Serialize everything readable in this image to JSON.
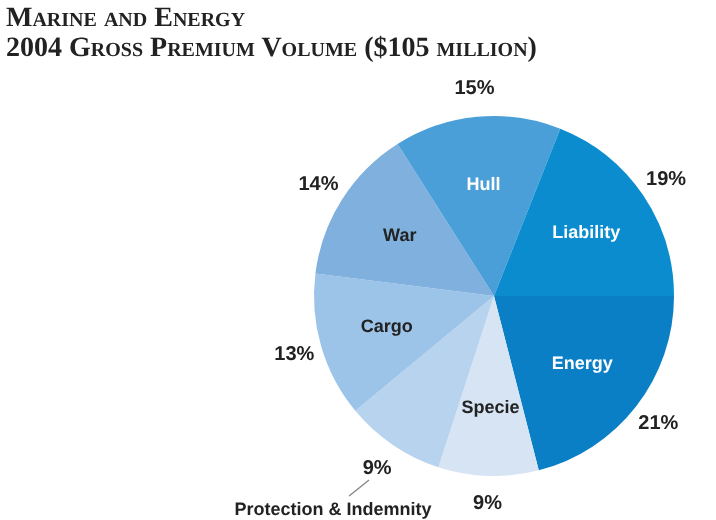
{
  "chart_data": {
    "type": "pie",
    "title": "Marine and Energy",
    "subtitle": "2004 Gross Premium Volume ($105 million)",
    "categories": [
      "Energy",
      "Specie",
      "Protection & Indemnity",
      "Cargo",
      "War",
      "Hull",
      "Liability"
    ],
    "values": [
      21,
      9,
      9,
      13,
      14,
      15,
      19
    ],
    "value_labels": [
      "21%",
      "9%",
      "9%",
      "13%",
      "14%",
      "15%",
      "19%"
    ],
    "colors": [
      "#0a7fc6",
      "#d6e4f4",
      "#b8d3ee",
      "#9cc3e8",
      "#7fb0de",
      "#4a9fd8",
      "#0a8ccf"
    ],
    "legend": false
  }
}
